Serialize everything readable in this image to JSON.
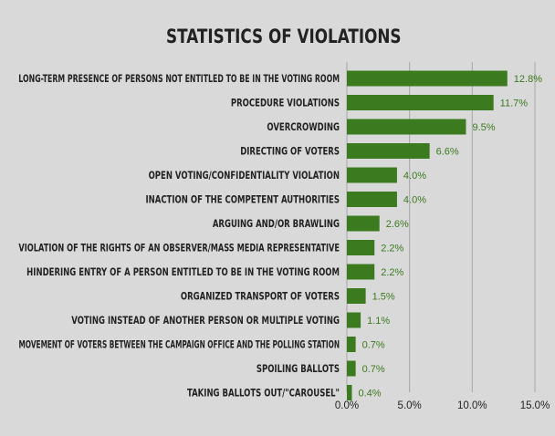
{
  "chart_data": {
    "type": "bar",
    "orientation": "horizontal",
    "title": "STATISTICS OF VIOLATIONS",
    "categories": [
      "LONG-TERM PRESENCE OF PERSONS NOT ENTITLED TO BE IN THE VOTING ROOM",
      "PROCEDURE VIOLATIONS",
      "OVERCROWDING",
      "DIRECTING OF VOTERS",
      "OPEN VOTING/CONFIDENTIALITY VIOLATION",
      "INACTION OF THE COMPETENT AUTHORITIES",
      "ARGUING AND/OR BRAWLING",
      "VIOLATION OF THE RIGHTS OF AN OBSERVER/MASS MEDIA REPRESENTATIVE",
      "HINDERING ENTRY OF A PERSON ENTITLED TO BE IN THE VOTING ROOM",
      "ORGANIZED TRANSPORT OF VOTERS",
      "VOTING INSTEAD OF ANOTHER PERSON OR MULTIPLE VOTING",
      "MOVEMENT OF VOTERS BETWEEN THE CAMPAIGN OFFICE AND THE POLLING STATION",
      "SPOILING BALLOTS",
      "TAKING BALLOTS OUT/\"CAROUSEL\""
    ],
    "values": [
      12.8,
      11.7,
      9.5,
      6.6,
      4.0,
      4.0,
      2.6,
      2.2,
      2.2,
      1.5,
      1.1,
      0.7,
      0.7,
      0.4
    ],
    "value_labels": [
      "12.8%",
      "11.7%",
      "9.5%",
      "6.6%",
      "4.0%",
      "4.0%",
      "2.6%",
      "2.2%",
      "2.2%",
      "1.5%",
      "1.1%",
      "0.7%",
      "0.7%",
      "0.4%"
    ],
    "xlim": [
      0,
      15
    ],
    "xticks": [
      0,
      5,
      10,
      15
    ],
    "xtick_labels": [
      "0.0%",
      "5.0%",
      "10.0%",
      "15.0%"
    ],
    "grid": true,
    "legend": false,
    "colors": {
      "background": "#d9d9d9",
      "bar": "#3b7a1f",
      "value_label": "#3b7a1f",
      "text": "#222222",
      "grid": "#a6a6a6"
    }
  }
}
